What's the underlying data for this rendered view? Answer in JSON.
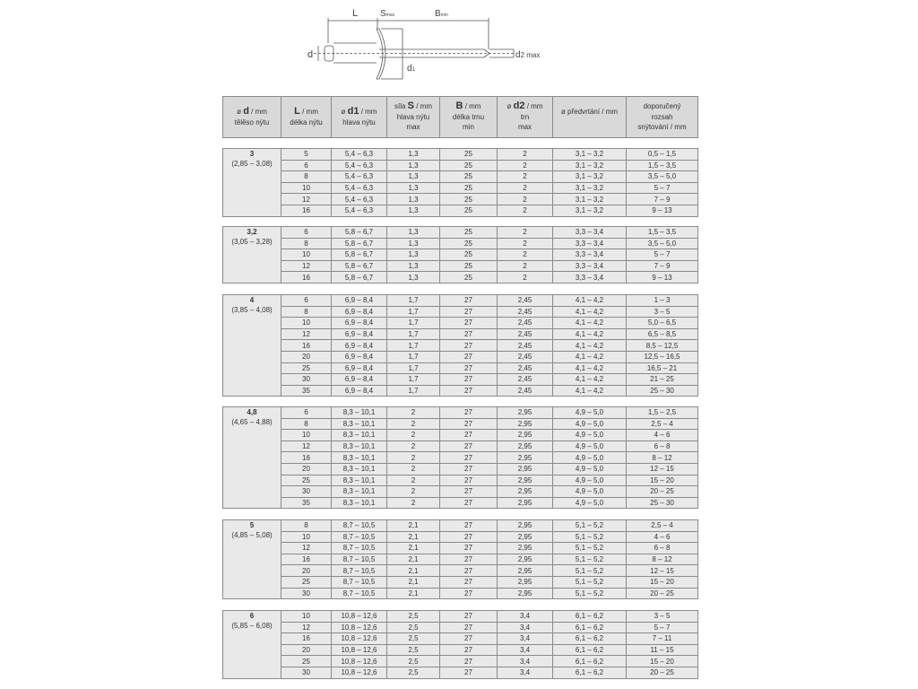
{
  "diagram": {
    "labels": {
      "L": "L",
      "S": "S",
      "S_sub": "max",
      "B": "B",
      "B_sub": "min",
      "d": "d",
      "d1": "d",
      "d1_sub": "1",
      "d2": "d",
      "d2_sub": "2 max"
    }
  },
  "header": [
    {
      "pre": "ø ",
      "bold": "d",
      "post": " / mm",
      "line2": "tělěso nýtu",
      "line3": ""
    },
    {
      "pre": "",
      "bold": "L",
      "post": "  / mm",
      "line2": "délka nýtu",
      "line3": ""
    },
    {
      "pre": "ø ",
      "bold": "d1",
      "post": " / mm",
      "line2": "hlava nýtu",
      "line3": ""
    },
    {
      "pre": "síla ",
      "bold": "S",
      "post": " / mm",
      "line2": "hlava nýtu",
      "line3": "max"
    },
    {
      "pre": "",
      "bold": "B",
      "post": " / mm",
      "line2": "délka trnu",
      "line3": "min"
    },
    {
      "pre": "ø ",
      "bold": "d2",
      "post": " / mm",
      "line2": "trn",
      "line3": "max"
    },
    {
      "pre": "ø předvrtání / mm",
      "bold": "",
      "post": "",
      "line2": "",
      "line3": ""
    },
    {
      "pre": "doporučený",
      "bold": "",
      "post": "",
      "line2": "rozsah",
      "line3": "snýtování / mm"
    }
  ],
  "groups": [
    {
      "d": "3",
      "range": "(2,85 – 3,08)",
      "rows": [
        [
          "5",
          "5,4 – 6,3",
          "1,3",
          "25",
          "2",
          "3,1 – 3,2",
          "0,5 – 1,5"
        ],
        [
          "6",
          "5,4 – 6,3",
          "1,3",
          "25",
          "2",
          "3,1 – 3,2",
          "1,5 – 3,5"
        ],
        [
          "8",
          "5,4 – 6,3",
          "1,3",
          "25",
          "2",
          "3,1 – 3,2",
          "3,5 – 5,0"
        ],
        [
          "10",
          "5,4 – 6,3",
          "1,3",
          "25",
          "2",
          "3,1 – 3,2",
          "5 – 7"
        ],
        [
          "12",
          "5,4 – 6,3",
          "1,3",
          "25",
          "2",
          "3,1 – 3,2",
          "7 – 9"
        ],
        [
          "16",
          "5,4 – 6,3",
          "1,3",
          "25",
          "2",
          "3,1 – 3,2",
          "9 – 13"
        ]
      ]
    },
    {
      "d": "3,2",
      "range": "(3,05 – 3,28)",
      "rows": [
        [
          "6",
          "5,8 – 6,7",
          "1,3",
          "25",
          "2",
          "3,3 – 3,4",
          "1,5 – 3,5"
        ],
        [
          "8",
          "5,8 – 6,7",
          "1,3",
          "25",
          "2",
          "3,3 – 3,4",
          "3,5 – 5,0"
        ],
        [
          "10",
          "5,8 – 6,7",
          "1,3",
          "25",
          "2",
          "3,3 – 3,4",
          "5 – 7"
        ],
        [
          "12",
          "5,8 – 6,7",
          "1,3",
          "25",
          "2",
          "3,3 – 3,4",
          "7 – 9"
        ],
        [
          "16",
          "5,8 – 6,7",
          "1,3",
          "25",
          "2",
          "3,3 – 3,4",
          "9 – 13"
        ]
      ]
    },
    {
      "d": "4",
      "range": "(3,85 – 4,08)",
      "rows": [
        [
          "6",
          "6,9 – 8,4",
          "1,7",
          "27",
          "2,45",
          "4,1 – 4,2",
          "1 – 3"
        ],
        [
          "8",
          "6,9 – 8,4",
          "1,7",
          "27",
          "2,45",
          "4,1 – 4,2",
          "3 – 5"
        ],
        [
          "10",
          "6,9 – 8,4",
          "1,7",
          "27",
          "2,45",
          "4,1 – 4,2",
          "5,0 – 6,5"
        ],
        [
          "12",
          "6,9 – 8,4",
          "1,7",
          "27",
          "2,45",
          "4,1 – 4,2",
          "6,5 – 8,5"
        ],
        [
          "16",
          "6,9 – 8,4",
          "1,7",
          "27",
          "2,45",
          "4,1 – 4,2",
          "8,5 – 12,5"
        ],
        [
          "20",
          "6,9 – 8,4",
          "1,7",
          "27",
          "2,45",
          "4,1 – 4,2",
          "12,5 – 16,5"
        ],
        [
          "25",
          "6,9 – 8,4",
          "1,7",
          "27",
          "2,45",
          "4,1 – 4,2",
          "16,5 – 21"
        ],
        [
          "30",
          "6,9 – 8,4",
          "1,7",
          "27",
          "2,45",
          "4,1 – 4,2",
          "21 – 25"
        ],
        [
          "35",
          "6,9 – 8,4",
          "1,7",
          "27",
          "2,45",
          "4,1 – 4,2",
          "25 – 30"
        ]
      ]
    },
    {
      "d": "4,8",
      "range": "(4,65 – 4,88)",
      "rows": [
        [
          "6",
          "8,3 – 10,1",
          "2",
          "27",
          "2,95",
          "4,9 – 5,0",
          "1,5 – 2,5"
        ],
        [
          "8",
          "8,3 – 10,1",
          "2",
          "27",
          "2,95",
          "4,9 – 5,0",
          "2,5 – 4"
        ],
        [
          "10",
          "8,3 – 10,1",
          "2",
          "27",
          "2,95",
          "4,9 – 5,0",
          "4 – 6"
        ],
        [
          "12",
          "8,3 – 10,1",
          "2",
          "27",
          "2,95",
          "4,9 – 5,0",
          "6 – 8"
        ],
        [
          "16",
          "8,3 – 10,1",
          "2",
          "27",
          "2,95",
          "4,9 – 5,0",
          "8 – 12"
        ],
        [
          "20",
          "8,3 – 10,1",
          "2",
          "27",
          "2,95",
          "4,9 – 5,0",
          "12 – 15"
        ],
        [
          "25",
          "8,3 – 10,1",
          "2",
          "27",
          "2,95",
          "4,9 – 5,0",
          "15 – 20"
        ],
        [
          "30",
          "8,3 – 10,1",
          "2",
          "27",
          "2,95",
          "4,9 – 5,0",
          "20 – 25"
        ],
        [
          "35",
          "8,3 – 10,1",
          "2",
          "27",
          "2,95",
          "4,9 – 5,0",
          "25 – 30"
        ]
      ]
    },
    {
      "d": "5",
      "range": "(4,85 – 5,08)",
      "rows": [
        [
          "8",
          "8,7 – 10,5",
          "2,1",
          "27",
          "2,95",
          "5,1 – 5,2",
          "2,5 – 4"
        ],
        [
          "10",
          "8,7 – 10,5",
          "2,1",
          "27",
          "2,95",
          "5,1 – 5,2",
          "4 – 6"
        ],
        [
          "12",
          "8,7 – 10,5",
          "2,1",
          "27",
          "2,95",
          "5,1 – 5,2",
          "6 – 8"
        ],
        [
          "16",
          "8,7 – 10,5",
          "2,1",
          "27",
          "2,95",
          "5,1 – 5,2",
          "8 – 12"
        ],
        [
          "20",
          "8,7 – 10,5",
          "2,1",
          "27",
          "2,95",
          "5,1 – 5,2",
          "12 – 15"
        ],
        [
          "25",
          "8,7 – 10,5",
          "2,1",
          "27",
          "2,95",
          "5,1 – 5,2",
          "15 – 20"
        ],
        [
          "30",
          "8,7 – 10,5",
          "2,1",
          "27",
          "2,95",
          "5,1 – 5,2",
          "20 – 25"
        ]
      ]
    },
    {
      "d": "6",
      "range": "(5,85 – 6,08)",
      "rows": [
        [
          "10",
          "10,8 – 12,6",
          "2,5",
          "27",
          "3,4",
          "6,1 – 6,2",
          "3 – 5"
        ],
        [
          "12",
          "10,8 – 12,6",
          "2,5",
          "27",
          "3,4",
          "6,1 – 6,2",
          "5 – 7"
        ],
        [
          "16",
          "10,8 – 12,6",
          "2,5",
          "27",
          "3,4",
          "6,1 – 6,2",
          "7 – 11"
        ],
        [
          "20",
          "10,8 – 12,6",
          "2,5",
          "27",
          "3,4",
          "6,1 – 6,2",
          "11 – 15"
        ],
        [
          "25",
          "10,8 – 12,6",
          "2,5",
          "27",
          "3,4",
          "6,1 – 6,2",
          "15 – 20"
        ],
        [
          "30",
          "10,8 – 12,6",
          "2,5",
          "27",
          "3,4",
          "6,1 – 6,2",
          "20 – 25"
        ]
      ]
    }
  ]
}
